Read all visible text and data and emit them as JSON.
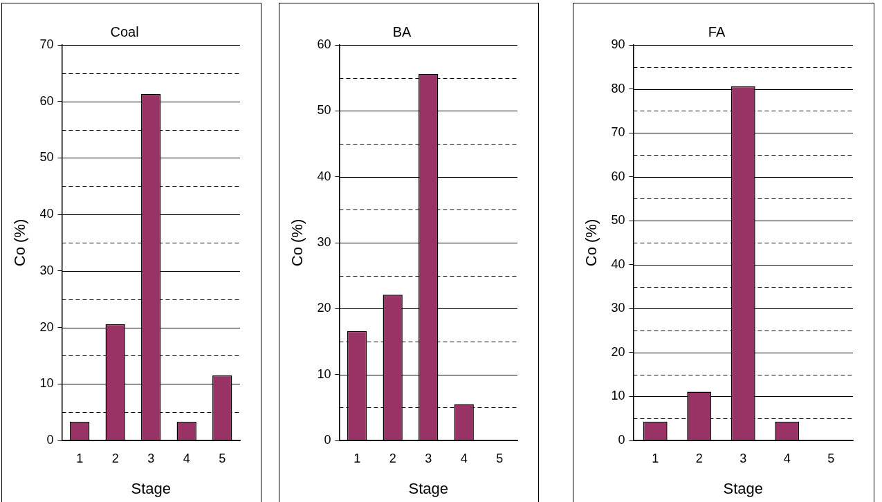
{
  "chart_data": [
    {
      "type": "bar",
      "title": "Coal",
      "xlabel": "Stage",
      "ylabel": "Co (%)",
      "categories": [
        "1",
        "2",
        "3",
        "4",
        "5"
      ],
      "values": [
        3.3,
        20.6,
        61.3,
        3.3,
        11.5
      ],
      "color": "#993366",
      "ylim": [
        0,
        70
      ],
      "yticks": [
        0,
        {
          "value": 5,
          "label": null
        },
        10,
        {
          "value": 15,
          "label": null
        },
        20,
        {
          "value": 25,
          "label": null
        },
        30,
        {
          "value": 35,
          "label": null
        },
        40,
        {
          "value": 45,
          "label": null
        },
        50,
        {
          "value": 55,
          "label": null
        },
        60,
        {
          "value": 65,
          "label": null
        },
        70
      ],
      "grid": "y",
      "legend": false
    },
    {
      "type": "bar",
      "title": "BA",
      "xlabel": "Stage",
      "ylabel": "Co (%)",
      "categories": [
        "1",
        "2",
        "3",
        "4",
        "5"
      ],
      "values": [
        16.6,
        22.1,
        55.6,
        5.5,
        0
      ],
      "color": "#993366",
      "ylim": [
        0,
        60
      ],
      "yticks": [
        0,
        {
          "value": 5,
          "label": null
        },
        10,
        {
          "value": 15,
          "label": null
        },
        20,
        {
          "value": 25,
          "label": null
        },
        30,
        {
          "value": 35,
          "label": null
        },
        40,
        {
          "value": 45,
          "label": null
        },
        50,
        {
          "value": 55,
          "label": null
        },
        60
      ],
      "grid": "y",
      "legend": false
    },
    {
      "type": "bar",
      "title": "FA",
      "xlabel": "Stage",
      "ylabel": "Co (%)",
      "categories": [
        "1",
        "2",
        "3",
        "4",
        "5"
      ],
      "values": [
        4.3,
        11.1,
        80.6,
        4.3,
        0
      ],
      "color": "#993366",
      "ylim": [
        0,
        90
      ],
      "yticks": [
        0,
        {
          "value": 5,
          "label": null
        },
        10,
        {
          "value": 15,
          "label": null
        },
        20,
        {
          "value": 25,
          "label": null
        },
        30,
        {
          "value": 35,
          "label": null
        },
        40,
        {
          "value": 45,
          "label": null
        },
        50,
        {
          "value": 55,
          "label": null
        },
        60,
        {
          "value": 65,
          "label": null
        },
        70,
        {
          "value": 75,
          "label": null
        },
        80,
        {
          "value": 85,
          "label": null
        },
        90
      ],
      "grid": "y",
      "legend": false
    }
  ]
}
